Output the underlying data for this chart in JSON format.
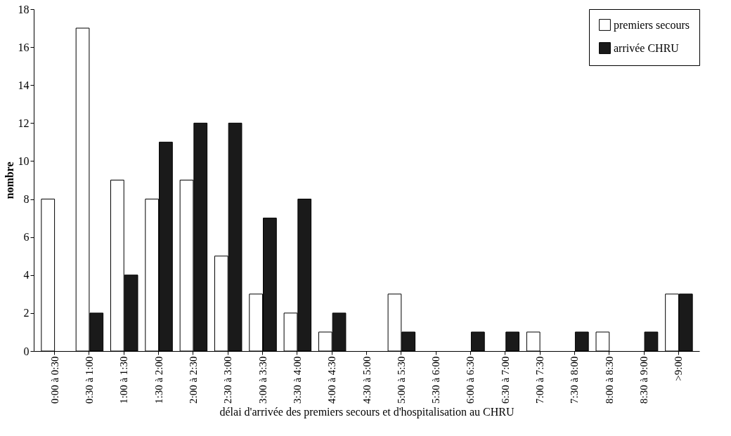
{
  "chart_data": {
    "type": "bar",
    "xlabel": "délai d'arrivée des premiers secours et d'hospitalisation au CHRU",
    "ylabel": "nombre",
    "categories": [
      "0:00 à 0:30",
      "0:30 à 1:00",
      "1:00 à 1:30",
      "1:30 à 2:00",
      "2:00 à 2:30",
      "2:30 à 3:00",
      "3:00 à 3:30",
      "3:30 à 4:00",
      "4:00 à 4:30",
      "4:30 à 5:00",
      "5:00 à 5:30",
      "5:30 à 6:00",
      "6:00 à 6:30",
      "6:30 à 7:00",
      "7:00 à 7:30",
      "7:30 à 8:00",
      "8:00 à 8:30",
      "8:30 à 9:00",
      ">9:00"
    ],
    "series": [
      {
        "name": "premiers secours",
        "color": "#ffffff",
        "values": [
          8,
          17,
          9,
          8,
          9,
          5,
          3,
          2,
          1,
          0,
          3,
          0,
          0,
          0,
          1,
          0,
          1,
          0,
          3
        ]
      },
      {
        "name": "arrivée CHRU",
        "color": "#1a1a1a",
        "values": [
          0,
          2,
          4,
          11,
          12,
          12,
          7,
          8,
          2,
          0,
          1,
          0,
          1,
          1,
          0,
          1,
          0,
          1,
          3
        ]
      }
    ],
    "ylim": [
      0,
      18
    ],
    "yticks": [
      0,
      2,
      4,
      6,
      8,
      10,
      12,
      14,
      16,
      18
    ],
    "grid": false,
    "legend": "top right"
  }
}
